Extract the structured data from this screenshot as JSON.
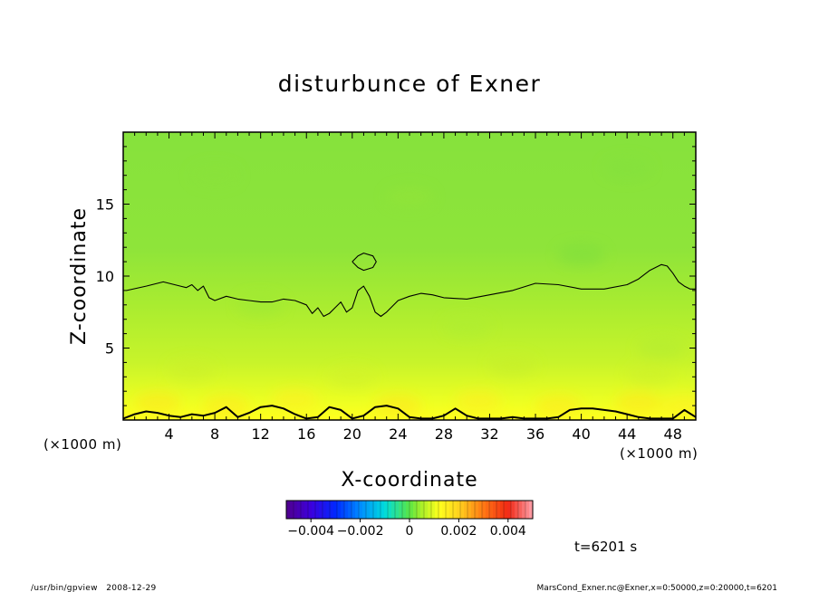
{
  "chart_data": {
    "type": "heatmap",
    "title": "disturbunce of Exner",
    "xlabel": "X-coordinate",
    "ylabel": "Z-coordinate",
    "x_unit": "(×1000 m)",
    "x_unit_right": "(×1000 m)",
    "y_unit": "(×1000 m)",
    "xlim": [
      0,
      50
    ],
    "ylim": [
      0,
      20
    ],
    "x_ticks": [
      4,
      8,
      12,
      16,
      20,
      24,
      28,
      32,
      36,
      40,
      44,
      48
    ],
    "y_ticks": [
      5,
      10,
      15
    ],
    "colorbar": {
      "range": [
        -0.005,
        0.005
      ],
      "tick_values": [
        -0.004,
        -0.002,
        0,
        0.002,
        0.004
      ],
      "tick_labels": [
        "−0.004",
        "−0.002",
        "0",
        "0.002",
        "0.004"
      ]
    },
    "field_description": "roughly 0.0005 near z=0 decreasing to about 0 near z=20",
    "contour_level": 0,
    "contours": [
      {
        "x": [
          0.3,
          2,
          3.5,
          5,
          5.5,
          6,
          6.5,
          7,
          7.5,
          8,
          9,
          10,
          11,
          12,
          13,
          14,
          15,
          16,
          16.5,
          17,
          17.5,
          18,
          18.5,
          19,
          19.5,
          20,
          20.5,
          21,
          21.5,
          22,
          22.5,
          23,
          24,
          25,
          26,
          27,
          28,
          30,
          32,
          34,
          36,
          38,
          40,
          42,
          44,
          45,
          46,
          47,
          47.5,
          48,
          48.5,
          49,
          49.5,
          50
        ],
        "y": [
          9.0,
          9.3,
          9.6,
          9.3,
          9.2,
          9.4,
          9.0,
          9.3,
          8.5,
          8.3,
          8.6,
          8.4,
          8.3,
          8.2,
          8.2,
          8.4,
          8.3,
          8.0,
          7.4,
          7.8,
          7.2,
          7.4,
          7.8,
          8.2,
          7.5,
          7.8,
          9.0,
          9.3,
          8.6,
          7.5,
          7.2,
          7.5,
          8.3,
          8.6,
          8.8,
          8.7,
          8.5,
          8.4,
          8.7,
          9.0,
          9.5,
          9.4,
          9.1,
          9.1,
          9.4,
          9.8,
          10.4,
          10.8,
          10.7,
          10.2,
          9.6,
          9.3,
          9.1,
          9.1
        ]
      },
      {
        "x": [
          20.0,
          20.5,
          21.0,
          21.8,
          22.1,
          21.8,
          21.0,
          20.5,
          20.0
        ],
        "y": [
          11.0,
          10.6,
          10.4,
          10.6,
          11.0,
          11.4,
          11.6,
          11.4,
          11.0
        ]
      },
      {
        "x": [
          0,
          1,
          2,
          3,
          4,
          5,
          6,
          7,
          8,
          9,
          10,
          11,
          12,
          13,
          14,
          15,
          16,
          17,
          18,
          19,
          20,
          21,
          22,
          23,
          24,
          25,
          26,
          27,
          28,
          29,
          30,
          31,
          32,
          33,
          34,
          35,
          36,
          37,
          38,
          39,
          40,
          41,
          42,
          43,
          44,
          45,
          46,
          47,
          48,
          49,
          50
        ],
        "y": [
          0.1,
          0.4,
          0.6,
          0.5,
          0.3,
          0.2,
          0.4,
          0.3,
          0.5,
          0.9,
          0.2,
          0.5,
          0.9,
          1.0,
          0.8,
          0.4,
          0.1,
          0.2,
          0.9,
          0.7,
          0.1,
          0.3,
          0.9,
          1.0,
          0.8,
          0.2,
          0.1,
          0.1,
          0.3,
          0.8,
          0.3,
          0.1,
          0.1,
          0.1,
          0.2,
          0.1,
          0.1,
          0.1,
          0.2,
          0.7,
          0.8,
          0.8,
          0.7,
          0.6,
          0.4,
          0.2,
          0.1,
          0.1,
          0.1,
          0.7,
          0.2
        ]
      }
    ],
    "grid": false,
    "legend": "colorbar at bottom-center",
    "annotations": {
      "time": "t=6201 s",
      "footer_left": "/usr/bin/gpview   2008-12-29",
      "footer_right": "MarsCond_Exner.nc@Exner,x=0:50000,z=0:20000,t=6201"
    }
  }
}
